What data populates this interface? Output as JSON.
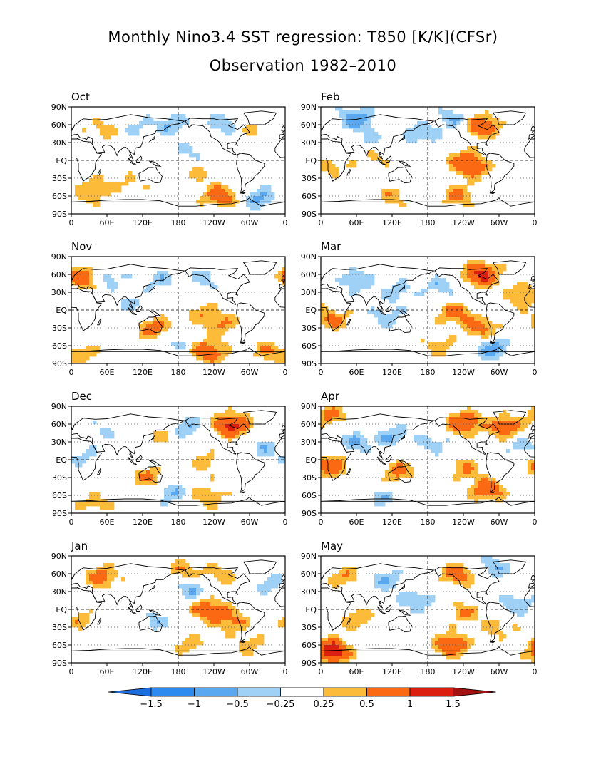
{
  "title": "Monthly Nino3.4 SST regression: T850 [K/K](CFSr)",
  "subtitle": "Observation 1982–2010",
  "chart_data": {
    "type": "heatmap",
    "variable": "T850 regression on Nino3.4 SST",
    "units": "K/K",
    "lat_range": [
      -90,
      90
    ],
    "lon_range": [
      0,
      360
    ],
    "lat_ticks": [
      "90N",
      "60N",
      "30N",
      "EQ",
      "30S",
      "60S",
      "90S"
    ],
    "lon_ticks": [
      "0",
      "60E",
      "120E",
      "180",
      "120W",
      "60W",
      "0"
    ],
    "grid": "dotted lat lines, dashed equator and 180 meridian",
    "panels": [
      {
        "month": "Oct",
        "features": [
          {
            "lon": 170,
            "lat": 60,
            "value": -0.5
          },
          {
            "lon": 255,
            "lat": 60,
            "value": -0.5
          },
          {
            "lon": 300,
            "lat": 55,
            "value": 0.3
          },
          {
            "lon": 200,
            "lat": 15,
            "value": -0.3
          },
          {
            "lon": 210,
            "lat": -20,
            "value": 0.3
          },
          {
            "lon": 250,
            "lat": -60,
            "value": 0.8
          },
          {
            "lon": 320,
            "lat": -65,
            "value": -0.6
          },
          {
            "lon": 45,
            "lat": -45,
            "value": 0.4
          },
          {
            "lon": 100,
            "lat": -40,
            "value": 0.3
          },
          {
            "lon": 15,
            "lat": -65,
            "value": 0.3
          },
          {
            "lon": 50,
            "lat": 50,
            "value": 0.4
          },
          {
            "lon": 110,
            "lat": 55,
            "value": -0.3
          }
        ]
      },
      {
        "month": "Feb",
        "features": [
          {
            "lon": 270,
            "lat": 58,
            "value": 1.0
          },
          {
            "lon": 225,
            "lat": 70,
            "value": -0.5
          },
          {
            "lon": 170,
            "lat": 45,
            "value": -0.5
          },
          {
            "lon": 240,
            "lat": 0,
            "value": 0.7
          },
          {
            "lon": 260,
            "lat": -15,
            "value": 0.5
          },
          {
            "lon": 120,
            "lat": -60,
            "value": 0.4
          },
          {
            "lon": 230,
            "lat": -60,
            "value": 0.6
          },
          {
            "lon": 60,
            "lat": 70,
            "value": -0.8
          },
          {
            "lon": 20,
            "lat": -10,
            "value": 0.4
          },
          {
            "lon": 90,
            "lat": 5,
            "value": 0.3
          },
          {
            "lon": 90,
            "lat": 35,
            "value": -0.3
          }
        ]
      },
      {
        "month": "Nov",
        "features": [
          {
            "lon": 20,
            "lat": 55,
            "value": 0.9
          },
          {
            "lon": 60,
            "lat": 55,
            "value": -0.5
          },
          {
            "lon": 150,
            "lat": 50,
            "value": -0.4
          },
          {
            "lon": 230,
            "lat": 55,
            "value": -0.4
          },
          {
            "lon": 220,
            "lat": -5,
            "value": 0.4
          },
          {
            "lon": 255,
            "lat": -25,
            "value": 0.5
          },
          {
            "lon": 230,
            "lat": -70,
            "value": 0.9
          },
          {
            "lon": 330,
            "lat": -70,
            "value": 0.5
          },
          {
            "lon": 140,
            "lat": -30,
            "value": 0.7
          },
          {
            "lon": 20,
            "lat": -75,
            "value": 0.4
          },
          {
            "lon": 100,
            "lat": 10,
            "value": -0.3
          },
          {
            "lon": 180,
            "lat": -55,
            "value": -0.3
          }
        ]
      },
      {
        "month": "Mar",
        "features": [
          {
            "lon": 270,
            "lat": 60,
            "value": 1.2
          },
          {
            "lon": 340,
            "lat": 25,
            "value": 0.6
          },
          {
            "lon": 60,
            "lat": 50,
            "value": -0.5
          },
          {
            "lon": 130,
            "lat": 30,
            "value": -0.4
          },
          {
            "lon": 200,
            "lat": 40,
            "value": -0.4
          },
          {
            "lon": 225,
            "lat": -5,
            "value": 0.7
          },
          {
            "lon": 270,
            "lat": -30,
            "value": 0.7
          },
          {
            "lon": 290,
            "lat": -65,
            "value": -0.7
          },
          {
            "lon": 20,
            "lat": -15,
            "value": 0.6
          },
          {
            "lon": 110,
            "lat": -10,
            "value": -0.4
          },
          {
            "lon": 200,
            "lat": -60,
            "value": 0.4
          }
        ]
      },
      {
        "month": "Dec",
        "features": [
          {
            "lon": 270,
            "lat": 58,
            "value": 1.2
          },
          {
            "lon": 195,
            "lat": 55,
            "value": -0.5
          },
          {
            "lon": 330,
            "lat": 20,
            "value": -0.4
          },
          {
            "lon": 230,
            "lat": -5,
            "value": 0.4
          },
          {
            "lon": 230,
            "lat": -60,
            "value": 0.5
          },
          {
            "lon": 130,
            "lat": -30,
            "value": 0.6
          },
          {
            "lon": 50,
            "lat": 45,
            "value": -0.3
          },
          {
            "lon": 150,
            "lat": 40,
            "value": 0.3
          },
          {
            "lon": 40,
            "lat": -75,
            "value": 0.4
          },
          {
            "lon": 165,
            "lat": -55,
            "value": -0.5
          },
          {
            "lon": 20,
            "lat": 5,
            "value": -0.3
          }
        ]
      },
      {
        "month": "Apr",
        "features": [
          {
            "lon": 240,
            "lat": 62,
            "value": 1.0
          },
          {
            "lon": 310,
            "lat": 55,
            "value": 0.8
          },
          {
            "lon": 15,
            "lat": 75,
            "value": 0.6
          },
          {
            "lon": 15,
            "lat": -10,
            "value": 0.9
          },
          {
            "lon": 60,
            "lat": 30,
            "value": -0.5
          },
          {
            "lon": 120,
            "lat": 40,
            "value": -0.5
          },
          {
            "lon": 130,
            "lat": -20,
            "value": 0.6
          },
          {
            "lon": 240,
            "lat": -15,
            "value": 0.5
          },
          {
            "lon": 280,
            "lat": -50,
            "value": 0.9
          },
          {
            "lon": 190,
            "lat": 30,
            "value": -0.4
          },
          {
            "lon": 340,
            "lat": 20,
            "value": -0.4
          },
          {
            "lon": 100,
            "lat": -65,
            "value": -0.4
          }
        ]
      },
      {
        "month": "Jan",
        "features": [
          {
            "lon": 50,
            "lat": 55,
            "value": 0.7
          },
          {
            "lon": 190,
            "lat": 65,
            "value": 0.5
          },
          {
            "lon": 250,
            "lat": 60,
            "value": 0.4
          },
          {
            "lon": 230,
            "lat": 0,
            "value": 0.8
          },
          {
            "lon": 270,
            "lat": -20,
            "value": 0.6
          },
          {
            "lon": 200,
            "lat": 35,
            "value": -0.5
          },
          {
            "lon": 140,
            "lat": -20,
            "value": -0.4
          },
          {
            "lon": 200,
            "lat": -60,
            "value": 0.4
          },
          {
            "lon": 330,
            "lat": 45,
            "value": -0.4
          },
          {
            "lon": 20,
            "lat": -20,
            "value": 0.4
          },
          {
            "lon": 300,
            "lat": -60,
            "value": 0.4
          }
        ]
      },
      {
        "month": "May",
        "features": [
          {
            "lon": 230,
            "lat": 60,
            "value": 0.8
          },
          {
            "lon": 290,
            "lat": 70,
            "value": -0.5
          },
          {
            "lon": 40,
            "lat": 55,
            "value": 0.5
          },
          {
            "lon": 110,
            "lat": 50,
            "value": -0.5
          },
          {
            "lon": 20,
            "lat": -70,
            "value": 1.4
          },
          {
            "lon": 220,
            "lat": -60,
            "value": 0.9
          },
          {
            "lon": 60,
            "lat": -15,
            "value": 0.5
          },
          {
            "lon": 240,
            "lat": -5,
            "value": 0.5
          },
          {
            "lon": 160,
            "lat": 15,
            "value": -0.5
          },
          {
            "lon": 330,
            "lat": 10,
            "value": -0.5
          },
          {
            "lon": 300,
            "lat": -30,
            "value": 0.4
          }
        ]
      }
    ],
    "colorbar": {
      "labels": [
        "−1.5",
        "−1",
        "−0.5",
        "−0.25",
        "0.25",
        "0.5",
        "1",
        "1.5"
      ],
      "levels": [
        -1.5,
        -1,
        -0.5,
        -0.25,
        0.25,
        0.5,
        1,
        1.5
      ],
      "colors": [
        "#1e6ee0",
        "#2d8bf0",
        "#5aa8f0",
        "#9fd1f7",
        "#ffffff",
        "#fdbb3a",
        "#fb6a13",
        "#dc1e10",
        "#a51010"
      ]
    }
  }
}
